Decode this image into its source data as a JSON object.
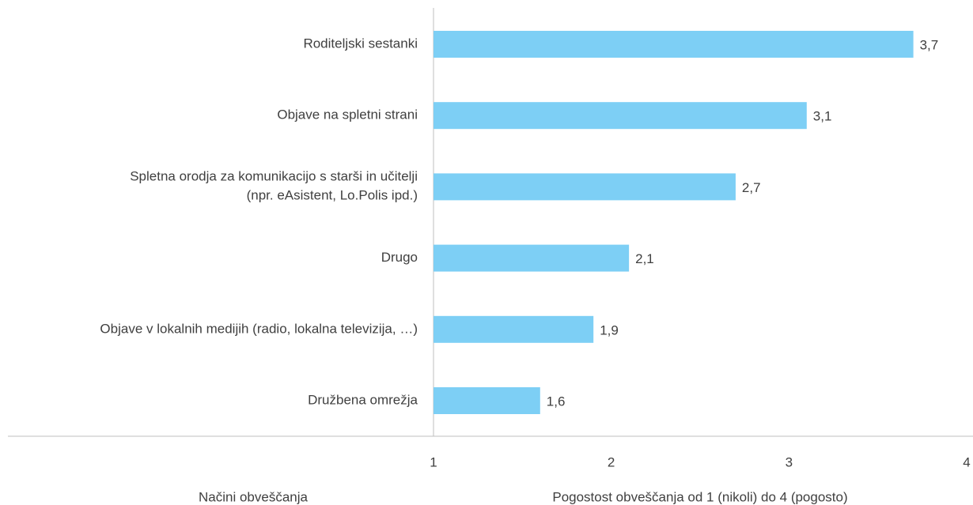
{
  "chart_data": {
    "type": "barh",
    "categories": [
      "Roditeljski sestanki",
      "Objave na spletni strani",
      "Spletna orodja za komunikacijo s starši in učitelji\n(npr. eAsistent, Lo.Polis ipd.)",
      "Drugo",
      "Objave v lokalnih medijih (radio, lokalna televizija, …)",
      "Družbena omrežja"
    ],
    "values": [
      3.7,
      3.1,
      2.7,
      2.1,
      1.9,
      1.6
    ],
    "value_labels": [
      "3,7",
      "3,1",
      "2,7",
      "2,1",
      "1,9",
      "1,6"
    ],
    "color": "#7dcff5",
    "xlim": [
      1,
      4
    ],
    "xticks": [
      1,
      2,
      3,
      4
    ],
    "y_axis_label": "Načini obveščanja",
    "x_axis_label": "Pogostost obveščanja od 1 (nikoli) do 4 (pogosto)"
  }
}
